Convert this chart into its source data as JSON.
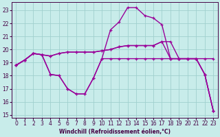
{
  "bg_color": "#c8ecea",
  "grid_color": "#a0d0ce",
  "line_color": "#990099",
  "xlabel": "Windchill (Refroidissement éolien,°C)",
  "xlim": [
    -0.5,
    23.5
  ],
  "ylim": [
    14.8,
    23.6
  ],
  "yticks": [
    15,
    16,
    17,
    18,
    19,
    20,
    21,
    22,
    23
  ],
  "xticks": [
    0,
    1,
    2,
    3,
    4,
    5,
    6,
    7,
    8,
    9,
    10,
    11,
    12,
    13,
    14,
    15,
    16,
    17,
    18,
    19,
    20,
    21,
    22,
    23
  ],
  "line1_x": [
    0,
    1,
    2,
    3,
    4,
    5,
    6,
    7,
    8,
    9,
    10,
    11,
    12,
    13,
    14,
    15,
    16,
    17,
    18,
    19,
    20,
    21,
    22,
    23
  ],
  "line1_y": [
    18.8,
    19.2,
    19.7,
    19.6,
    18.1,
    18.0,
    17.0,
    16.6,
    16.6,
    17.8,
    19.3,
    21.5,
    22.1,
    23.2,
    23.2,
    22.6,
    22.4,
    21.9,
    19.3,
    19.3,
    19.3,
    19.3,
    18.1,
    15.3
  ],
  "line2_x": [
    0,
    1,
    2,
    3,
    4,
    5,
    6,
    7,
    8,
    9,
    10,
    11,
    12,
    13,
    14,
    15,
    16,
    17,
    18,
    19,
    20,
    21,
    22,
    23
  ],
  "line2_y": [
    18.8,
    19.2,
    19.7,
    19.6,
    19.5,
    19.7,
    19.8,
    19.8,
    19.8,
    19.8,
    19.9,
    20.0,
    20.2,
    20.3,
    20.3,
    20.3,
    20.3,
    20.6,
    20.6,
    19.3,
    19.3,
    19.3,
    19.3,
    19.3
  ],
  "line3_x": [
    0,
    1,
    2,
    3,
    4,
    5,
    6,
    7,
    8,
    9,
    10,
    11,
    12,
    13,
    14,
    15,
    16,
    17,
    18,
    19,
    20,
    21,
    22,
    23
  ],
  "line3_y": [
    18.8,
    19.2,
    19.7,
    19.6,
    18.1,
    18.0,
    17.0,
    16.6,
    16.6,
    17.8,
    19.3,
    19.3,
    19.3,
    19.3,
    19.3,
    19.3,
    19.3,
    19.3,
    19.3,
    19.3,
    19.3,
    19.3,
    18.1,
    15.3
  ],
  "line4_x": [
    0,
    1,
    2,
    3,
    4,
    5,
    6,
    7,
    8,
    9,
    10,
    11,
    12,
    13,
    14,
    15,
    16,
    17,
    18,
    19,
    20,
    21,
    22,
    23
  ],
  "line4_y": [
    18.8,
    19.2,
    19.7,
    19.6,
    19.5,
    19.7,
    19.8,
    19.8,
    19.8,
    19.8,
    19.9,
    20.0,
    20.2,
    20.3,
    20.3,
    20.3,
    20.3,
    20.6,
    19.3,
    19.3,
    19.3,
    19.3,
    18.1,
    15.3
  ]
}
